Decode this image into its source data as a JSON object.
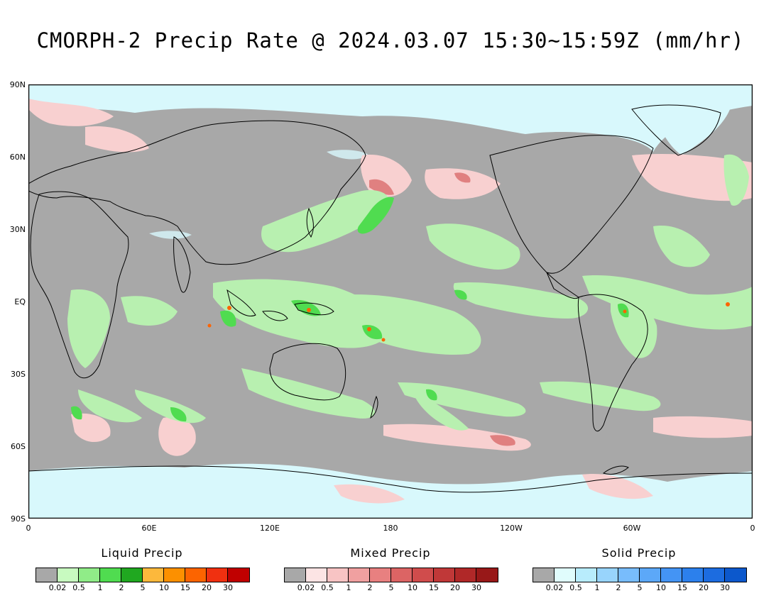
{
  "title": "CMORPH-2 Precip Rate @ 2024.03.07 15:30~15:59Z (mm/hr)",
  "map": {
    "lat_labels": [
      "90N",
      "60N",
      "30N",
      "EQ",
      "30S",
      "60S",
      "90S"
    ],
    "lon_labels": [
      "0",
      "60E",
      "120E",
      "180",
      "120W",
      "60W",
      "0"
    ],
    "colors": {
      "no_precip": "#a8a8a8",
      "ocean_ice_light": "#d8f8fc",
      "coastline": "#000000"
    }
  },
  "legends": [
    {
      "title": "Liquid Precip",
      "colors": [
        "#a8a8a8",
        "#c8fac0",
        "#90ec88",
        "#50dc50",
        "#20a820",
        "#fcb83c",
        "#fc9000",
        "#fc6400",
        "#f03010",
        "#c00000"
      ],
      "ticks": [
        "0.02",
        "0.5",
        "1",
        "2",
        "5",
        "10",
        "15",
        "20",
        "30"
      ]
    },
    {
      "title": "Mixed Precip",
      "colors": [
        "#a8a8a8",
        "#fce4e4",
        "#f8c4c4",
        "#f0a0a0",
        "#e88080",
        "#dc6464",
        "#d04c4c",
        "#c03838",
        "#b02828",
        "#981818"
      ],
      "ticks": [
        "0.02",
        "0.5",
        "1",
        "2",
        "5",
        "10",
        "15",
        "20",
        "30"
      ]
    },
    {
      "title": "Solid Precip",
      "colors": [
        "#a8a8a8",
        "#e0fcfc",
        "#b8ecfc",
        "#98d4fc",
        "#78bcfc",
        "#5ca8f8",
        "#4494f4",
        "#2c80ec",
        "#1c6ce0",
        "#0c58cc"
      ],
      "ticks": [
        "0.02",
        "0.5",
        "1",
        "2",
        "5",
        "10",
        "15",
        "20",
        "30"
      ]
    }
  ]
}
